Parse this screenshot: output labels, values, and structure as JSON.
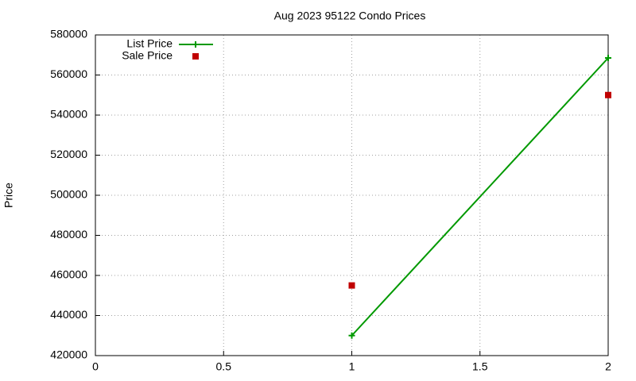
{
  "chart_data": {
    "type": "line",
    "title": "Aug 2023 95122 Condo Prices",
    "y_label": "Price",
    "x": [
      1,
      2
    ],
    "series": [
      {
        "name": "List Price",
        "color": "#009900",
        "mode": "linespoints",
        "values": [
          430000,
          568500
        ]
      },
      {
        "name": "Sale Price",
        "color": "#c00000",
        "mode": "points",
        "values": [
          455000,
          550000
        ]
      }
    ],
    "xlim": [
      0,
      2
    ],
    "xticks": [
      0,
      0.5,
      1,
      1.5,
      2
    ],
    "ylim": [
      420000,
      580000
    ],
    "yticks": [
      420000,
      440000,
      460000,
      480000,
      500000,
      520000,
      540000,
      560000,
      580000
    ],
    "grid": true,
    "legend": "top-left"
  }
}
